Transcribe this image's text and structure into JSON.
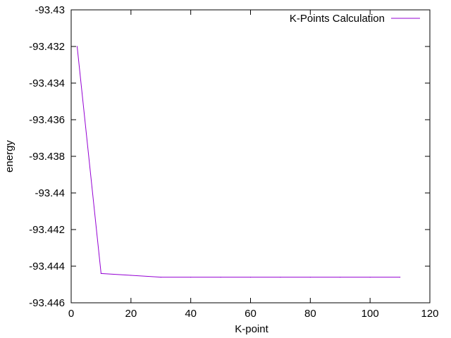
{
  "chart_data": {
    "type": "line",
    "title": "",
    "xlabel": "K-point",
    "ylabel": "energy",
    "xlim": [
      0,
      120
    ],
    "ylim": [
      -93.446,
      -93.43
    ],
    "x_ticks": [
      0,
      20,
      40,
      60,
      80,
      100,
      120
    ],
    "x_tick_labels": [
      "0",
      "20",
      "40",
      "60",
      "80",
      "100",
      "120"
    ],
    "y_ticks": [
      -93.43,
      -93.432,
      -93.434,
      -93.436,
      -93.438,
      -93.44,
      -93.442,
      -93.444,
      -93.446
    ],
    "y_tick_labels": [
      "-93.43",
      "-93.432",
      "-93.434",
      "-93.436",
      "-93.438",
      "-93.44",
      "-93.442",
      "-93.444",
      "-93.446"
    ],
    "grid": false,
    "legend_position": "top-right",
    "series": [
      {
        "name": "K-Points Calculation",
        "color": "#9400d3",
        "x": [
          2,
          10,
          20,
          30,
          40,
          50,
          60,
          70,
          80,
          90,
          100,
          110
        ],
        "y": [
          -93.432,
          -93.4444,
          -93.4445,
          -93.4446,
          -93.4446,
          -93.4446,
          -93.4446,
          -93.4446,
          -93.4446,
          -93.4446,
          -93.4446,
          -93.4446
        ]
      }
    ]
  }
}
